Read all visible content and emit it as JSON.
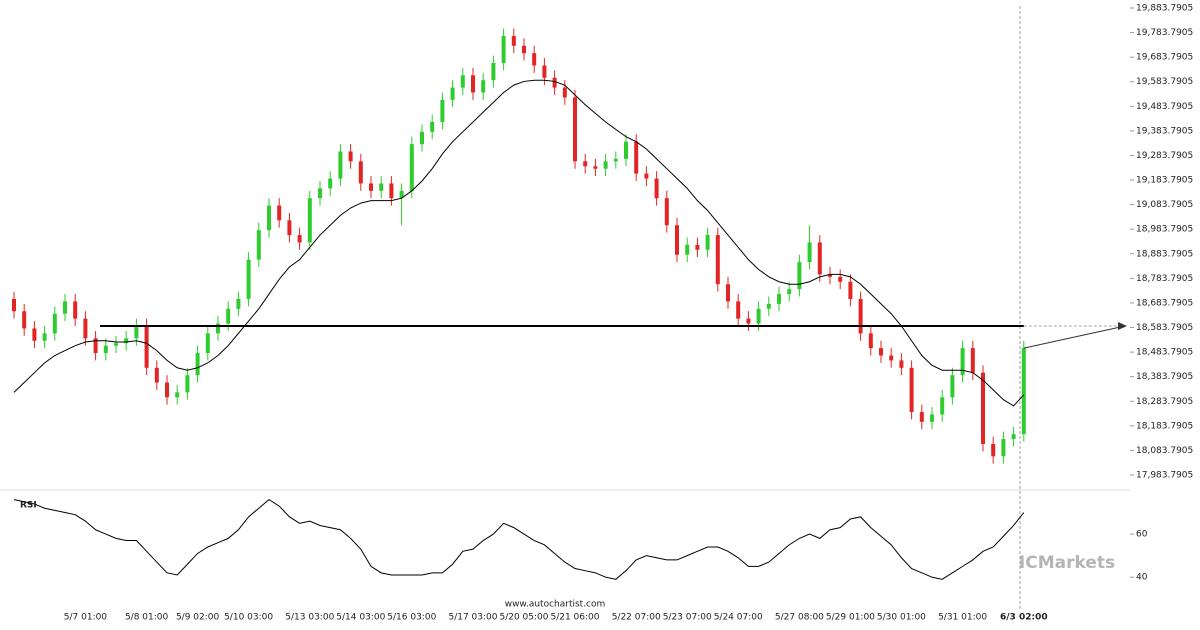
{
  "chart_data": [
    {
      "type": "candlestick",
      "categories": [
        null,
        null,
        null,
        null,
        null,
        null,
        null,
        "5/7 01:00",
        null,
        null,
        null,
        null,
        null,
        "5/8 01:00",
        null,
        null,
        null,
        null,
        "5/9 02:00",
        null,
        null,
        null,
        null,
        "5/10 03:00",
        null,
        null,
        null,
        null,
        null,
        "5/13 03:00",
        null,
        null,
        null,
        null,
        "5/14 03:00",
        null,
        null,
        null,
        null,
        "5/16 03:00",
        null,
        null,
        null,
        null,
        null,
        "5/17 03:00",
        null,
        null,
        null,
        null,
        "5/20 05:00",
        null,
        null,
        null,
        null,
        "5/21 06:00",
        null,
        null,
        null,
        null,
        null,
        "5/22 07:00",
        null,
        null,
        null,
        null,
        "5/23 07:00",
        null,
        null,
        null,
        null,
        "5/24 07:00",
        null,
        null,
        null,
        null,
        null,
        "5/27 08:00",
        null,
        null,
        null,
        null,
        "5/29 01:00",
        null,
        null,
        null,
        null,
        "5/30 01:00",
        null,
        null,
        null,
        null,
        null,
        "5/31 01:00",
        null,
        null,
        null,
        null,
        null,
        "6/3 02:00"
      ],
      "open": [
        18700,
        18650,
        18580,
        18530,
        18560,
        18640,
        18690,
        18620,
        18540,
        18480,
        18510,
        18520,
        18540,
        18590,
        18420,
        18360,
        18300,
        18320,
        18390,
        18480,
        18560,
        18600,
        18660,
        18700,
        18860,
        18980,
        19080,
        19020,
        18960,
        18930,
        19110,
        19150,
        19190,
        19300,
        19260,
        19170,
        19140,
        19170,
        19110,
        19140,
        19330,
        19380,
        19420,
        19510,
        19560,
        19610,
        19540,
        19590,
        19660,
        19770,
        19730,
        19700,
        19650,
        19600,
        19560,
        19520,
        19260,
        19240,
        19230,
        19260,
        19270,
        19340,
        19210,
        19190,
        19110,
        19000,
        18880,
        18920,
        18900,
        18960,
        18760,
        18690,
        18620,
        18600,
        18660,
        18680,
        18720,
        18740,
        18850,
        18930,
        18800,
        18790,
        18770,
        18700,
        18560,
        18500,
        18470,
        18450,
        18420,
        18240,
        18200,
        18230,
        18300,
        18390,
        18500,
        18400,
        18110,
        18060,
        18130,
        18150
      ],
      "high": [
        18730,
        18680,
        18610,
        18590,
        18670,
        18720,
        18720,
        18650,
        18570,
        18540,
        18550,
        18570,
        18620,
        18620,
        18450,
        18390,
        18350,
        18420,
        18510,
        18590,
        18630,
        18690,
        18730,
        18890,
        19010,
        19110,
        19110,
        19050,
        18990,
        19140,
        19180,
        19220,
        19330,
        19330,
        19290,
        19200,
        19200,
        19200,
        19170,
        19360,
        19410,
        19450,
        19540,
        19590,
        19640,
        19640,
        19620,
        19690,
        19800,
        19800,
        19760,
        19730,
        19680,
        19630,
        19590,
        19550,
        19290,
        19270,
        19290,
        19300,
        19370,
        19370,
        19240,
        19220,
        19140,
        19030,
        18950,
        18950,
        18990,
        18990,
        18790,
        18720,
        18650,
        18690,
        18710,
        18750,
        18770,
        18880,
        19000,
        18960,
        18830,
        18820,
        18800,
        18730,
        18590,
        18530,
        18500,
        18480,
        18450,
        18270,
        18260,
        18330,
        18420,
        18530,
        18530,
        18430,
        18140,
        18160,
        18180,
        18530
      ],
      "low": [
        18620,
        18550,
        18500,
        18500,
        18530,
        18610,
        18590,
        18510,
        18450,
        18450,
        18480,
        18490,
        18510,
        18390,
        18330,
        18270,
        18270,
        18290,
        18360,
        18450,
        18530,
        18570,
        18630,
        18670,
        18830,
        18950,
        18990,
        18930,
        18900,
        18900,
        19080,
        19120,
        19160,
        19230,
        19140,
        19110,
        19110,
        19080,
        19000,
        19110,
        19300,
        19350,
        19390,
        19480,
        19530,
        19510,
        19510,
        19560,
        19630,
        19700,
        19670,
        19620,
        19570,
        19530,
        19490,
        19230,
        19210,
        19200,
        19200,
        19230,
        19240,
        19180,
        19160,
        19080,
        18970,
        18850,
        18850,
        18870,
        18870,
        18730,
        18660,
        18590,
        18570,
        18570,
        18630,
        18650,
        18690,
        18710,
        18820,
        18770,
        18760,
        18740,
        18670,
        18530,
        18470,
        18440,
        18420,
        18390,
        18210,
        18170,
        18170,
        18200,
        18270,
        18360,
        18370,
        18080,
        18030,
        18030,
        18100,
        18120
      ],
      "close": [
        18650,
        18580,
        18530,
        18560,
        18640,
        18690,
        18620,
        18540,
        18480,
        18510,
        18520,
        18540,
        18590,
        18420,
        18360,
        18300,
        18320,
        18390,
        18480,
        18560,
        18600,
        18660,
        18700,
        18860,
        18980,
        19080,
        19020,
        18960,
        18930,
        19110,
        19150,
        19190,
        19300,
        19260,
        19170,
        19140,
        19170,
        19110,
        19140,
        19330,
        19380,
        19420,
        19510,
        19560,
        19610,
        19540,
        19590,
        19660,
        19770,
        19730,
        19700,
        19650,
        19600,
        19560,
        19520,
        19260,
        19240,
        19230,
        19260,
        19270,
        19340,
        19210,
        19190,
        19110,
        19000,
        18880,
        18920,
        18900,
        18960,
        18760,
        18690,
        18620,
        18600,
        18660,
        18680,
        18720,
        18740,
        18850,
        18930,
        18800,
        18790,
        18770,
        18700,
        18560,
        18500,
        18470,
        18450,
        18420,
        18240,
        18200,
        18230,
        18300,
        18390,
        18500,
        18400,
        18110,
        18060,
        18130,
        18150,
        18500
      ],
      "up_color": "#2ecc2e",
      "down_color": "#e32424",
      "moving_average": {
        "color": "#000000",
        "values": [
          18320,
          18360,
          18400,
          18440,
          18470,
          18490,
          18510,
          18525,
          18530,
          18530,
          18525,
          18525,
          18530,
          18520,
          18490,
          18450,
          18420,
          18410,
          18420,
          18440,
          18470,
          18510,
          18560,
          18610,
          18660,
          18720,
          18780,
          18830,
          18860,
          18910,
          18960,
          19000,
          19040,
          19070,
          19090,
          19100,
          19100,
          19100,
          19110,
          19140,
          19180,
          19230,
          19290,
          19340,
          19380,
          19420,
          19460,
          19500,
          19540,
          19570,
          19585,
          19590,
          19590,
          19585,
          19570,
          19530,
          19490,
          19455,
          19420,
          19390,
          19360,
          19340,
          19310,
          19270,
          19230,
          19190,
          19150,
          19100,
          19060,
          19010,
          18960,
          18910,
          18860,
          18820,
          18790,
          18770,
          18760,
          18760,
          18770,
          18790,
          18800,
          18800,
          18790,
          18760,
          18720,
          18680,
          18640,
          18590,
          18530,
          18470,
          18430,
          18410,
          18410,
          18410,
          18400,
          18370,
          18330,
          18290,
          18265,
          18310
        ]
      },
      "level": 18590,
      "ylim": [
        17983.7905,
        19883.7905
      ],
      "yticks": [
        {
          "value": 17983.7905,
          "label": "17,983.7905"
        },
        {
          "value": 18083.7905,
          "label": "18,083.7905"
        },
        {
          "value": 18183.7905,
          "label": "18,183.7905"
        },
        {
          "value": 18283.7905,
          "label": "18,283.7905"
        },
        {
          "value": 18383.7905,
          "label": "18,383.7905"
        },
        {
          "value": 18483.7905,
          "label": "18,483.7905"
        },
        {
          "value": 18583.7905,
          "label": "18,583.7905"
        },
        {
          "value": 18683.7905,
          "label": "18,683.7905"
        },
        {
          "value": 18783.7905,
          "label": "18,783.7905"
        },
        {
          "value": 18883.7905,
          "label": "18,883.7905"
        },
        {
          "value": 18983.7905,
          "label": "18,983.7905"
        },
        {
          "value": 19083.7905,
          "label": "19,083.7905"
        },
        {
          "value": 19183.7905,
          "label": "19,183.7905"
        },
        {
          "value": 19283.7905,
          "label": "19,283.7905"
        },
        {
          "value": 19383.7905,
          "label": "19,383.7905"
        },
        {
          "value": 19483.7905,
          "label": "19,483.7905"
        },
        {
          "value": 19583.7905,
          "label": "19,583.7905"
        },
        {
          "value": 19683.7905,
          "label": "19,683.7905"
        },
        {
          "value": 19783.7905,
          "label": "19,783.7905"
        },
        {
          "value": 19883.7905,
          "label": "19,883.7905"
        }
      ]
    },
    {
      "type": "line",
      "title": "RSI",
      "color": "#000000",
      "values": [
        76,
        75,
        74,
        72,
        71,
        70,
        69,
        66,
        62,
        60,
        58,
        57,
        57,
        52,
        47,
        42,
        41,
        46,
        51,
        54,
        56,
        58,
        62,
        68,
        72,
        76,
        73,
        68,
        65,
        66,
        64,
        63,
        62,
        58,
        53,
        45,
        42,
        41,
        41,
        41,
        41,
        42,
        42,
        46,
        52,
        53,
        57,
        60,
        65,
        63,
        60,
        57,
        55,
        51,
        47,
        44,
        43,
        42,
        40,
        39,
        43,
        48,
        50,
        49,
        48,
        48,
        50,
        52,
        54,
        54,
        52,
        49,
        45,
        45,
        47,
        51,
        55,
        58,
        60,
        58,
        62,
        63,
        67,
        68,
        63,
        59,
        55,
        49,
        44,
        42,
        40,
        39,
        42,
        45,
        48,
        52,
        54,
        59,
        64,
        70
      ],
      "ylim": [
        28,
        80
      ],
      "yticks": [
        40,
        60
      ]
    }
  ],
  "watermark": "www.autochartist.com",
  "brand": "ICMarkets"
}
